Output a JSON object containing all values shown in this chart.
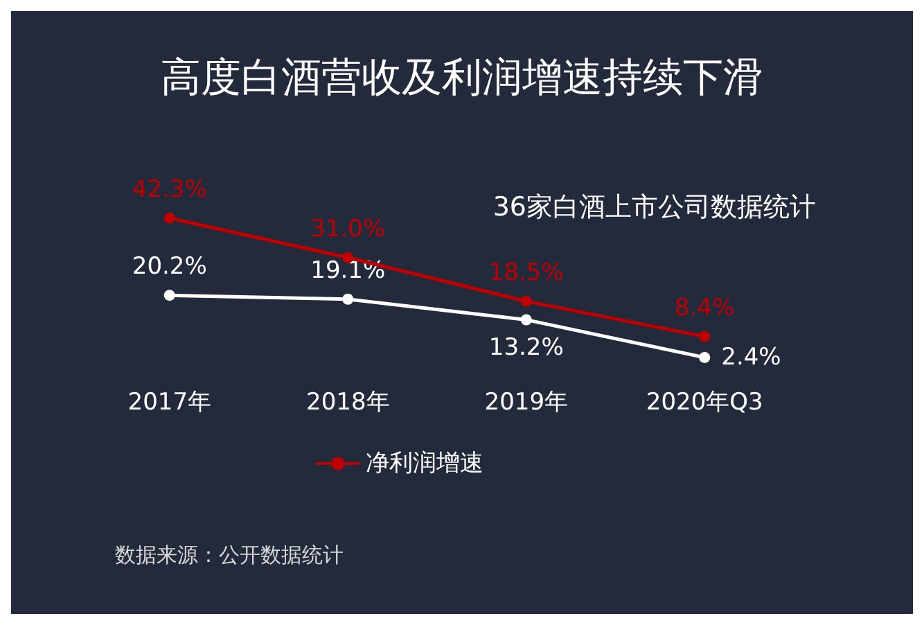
{
  "chart_data": {
    "type": "line",
    "title": "高度白酒营收及利润增速持续下滑",
    "subtitle": "36家白酒上市公司数据统计",
    "categories": [
      "2017年",
      "2018年",
      "2019年",
      "2020年Q3"
    ],
    "series": [
      {
        "name": "净利润增速",
        "color": "#c00000",
        "values": [
          42.3,
          31.0,
          18.5,
          8.4
        ],
        "value_labels": [
          "42.3%",
          "31.0%",
          "18.5%",
          "8.4%"
        ]
      },
      {
        "color": "#ffffff",
        "values": [
          20.2,
          19.1,
          13.2,
          2.4
        ],
        "value_labels": [
          "20.2%",
          "19.1%",
          "13.2%",
          "2.4%"
        ]
      }
    ],
    "annotations": [
      "数据来源：公开数据统计"
    ],
    "legend": "bottom",
    "grid": false,
    "marker": "circle",
    "line_style": "solid"
  }
}
